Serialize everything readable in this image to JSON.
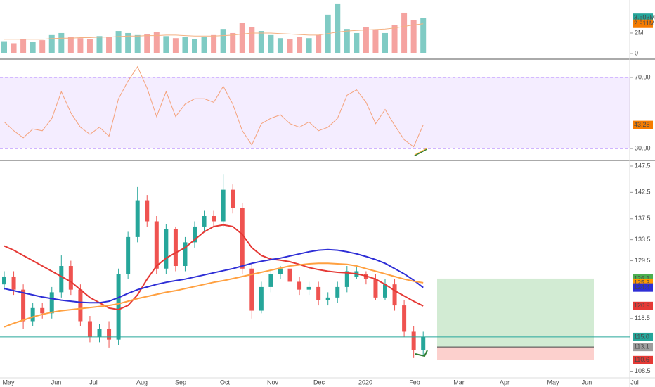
{
  "chart_data": [
    {
      "type": "bar",
      "values": [
        1200000,
        1000000,
        1400000,
        1100000,
        1300000,
        1800000,
        2000000,
        1600000,
        1500000,
        1400000,
        1700000,
        1600000,
        2200000,
        2000000,
        1800000,
        1900000,
        2100000,
        1700000,
        1500000,
        1600000,
        1400000,
        1600000,
        1800000,
        2400000,
        2000000,
        3000000,
        2600000,
        2200000,
        1800000,
        1500000,
        1400000,
        1600000,
        1500000,
        1800000,
        3800000,
        4900000,
        2400000,
        2000000,
        2600000,
        2300000,
        2000000,
        2800000,
        4000000,
        3300000,
        3503000
      ],
      "up_color": "#80cbc4",
      "down_color": "#f5a3a0",
      "ma": {
        "color": "#f4b183",
        "values": [
          1400000,
          1400000,
          1400000,
          1400000,
          1400000,
          1450000,
          1500000,
          1500000,
          1550000,
          1550000,
          1600000,
          1600000,
          1650000,
          1700000,
          1700000,
          1750000,
          1750000,
          1800000,
          1800000,
          1750000,
          1700000,
          1700000,
          1700000,
          1750000,
          1800000,
          1900000,
          2000000,
          2000000,
          2000000,
          1950000,
          1900000,
          1850000,
          1800000,
          1800000,
          1950000,
          2100000,
          2200000,
          2250000,
          2300000,
          2350000,
          2400000,
          2500000,
          2650000,
          2800000,
          2911000
        ]
      },
      "ylim": [
        -280000,
        5240000
      ],
      "yticks": [
        0,
        {
          "value": 2000000,
          "label": "2M"
        }
      ],
      "last_labels": [
        {
          "value": 3503000,
          "label": "3.503M",
          "color": "#26a69a"
        },
        {
          "value": 2911000,
          "label": "2.911M",
          "color": "#f57c00"
        }
      ]
    },
    {
      "type": "line",
      "values": [
        45,
        40,
        36,
        41,
        40,
        47,
        62,
        50,
        42,
        38,
        42,
        37,
        58,
        68,
        76,
        64,
        48,
        62,
        48,
        55,
        58,
        58,
        56,
        65,
        55,
        40,
        32,
        44,
        47,
        49,
        44,
        42,
        45,
        40,
        42,
        47,
        60,
        63,
        56,
        44,
        52,
        43,
        35,
        31,
        43.25
      ],
      "color": "#f4a27b",
      "band_color": "#b388ff",
      "ylim": [
        24.5,
        78.7
      ],
      "yticks": [
        {
          "value": 30,
          "label": "30.00"
        },
        {
          "value": 70,
          "label": "70.00"
        }
      ],
      "last_labels": [
        {
          "value": 43.25,
          "label": "43.25",
          "color": "#f57c00"
        }
      ]
    },
    {
      "type": "candlestick",
      "open": [
        125.0,
        126.5,
        124.0,
        118.0,
        120.5,
        119.5,
        123.5,
        128.5,
        124.0,
        118.0,
        115.0,
        116.5,
        114.5,
        127.0,
        134.0,
        141.0,
        137.0,
        128.0,
        135.5,
        128.5,
        133.0,
        136.0,
        138.0,
        137.0,
        143.0,
        139.5,
        128.0,
        120.0,
        124.5,
        127.0,
        128.0,
        125.5,
        124.0,
        124.5,
        122.0,
        122.5,
        124.5,
        126.5,
        127.0,
        126.0,
        122.5,
        125.0,
        121.0,
        116.0,
        112.5
      ],
      "high": [
        127.5,
        127.5,
        125.0,
        121.5,
        121.5,
        124.5,
        130.5,
        129.5,
        125.0,
        119.0,
        117.5,
        118.0,
        128.0,
        135.0,
        143.5,
        142.0,
        138.0,
        136.5,
        136.0,
        134.0,
        137.0,
        139.0,
        139.0,
        146.0,
        144.0,
        140.5,
        129.0,
        125.5,
        128.0,
        128.5,
        129.0,
        126.5,
        125.5,
        125.5,
        123.5,
        125.5,
        128.5,
        128.5,
        127.5,
        127.0,
        126.0,
        126.0,
        122.0,
        117.0,
        116.0
      ],
      "low": [
        124.0,
        123.0,
        116.5,
        117.0,
        118.5,
        118.5,
        122.5,
        123.0,
        117.0,
        114.0,
        114.0,
        113.0,
        113.5,
        126.0,
        133.0,
        136.0,
        127.0,
        127.0,
        127.5,
        127.5,
        132.0,
        135.0,
        136.0,
        136.0,
        138.5,
        127.0,
        118.5,
        119.5,
        123.5,
        126.0,
        125.0,
        123.0,
        123.0,
        121.0,
        121.0,
        121.5,
        123.5,
        126.0,
        125.0,
        122.0,
        122.0,
        120.0,
        115.0,
        111.0,
        111.5
      ],
      "close": [
        126.5,
        124.0,
        118.0,
        120.5,
        119.5,
        123.5,
        128.5,
        124.0,
        118.0,
        115.0,
        116.5,
        114.5,
        127.0,
        134.0,
        141.0,
        137.0,
        128.0,
        135.5,
        128.5,
        133.0,
        136.0,
        138.0,
        137.0,
        143.0,
        139.5,
        128.0,
        120.0,
        124.5,
        127.0,
        128.0,
        125.5,
        124.0,
        124.5,
        122.0,
        122.5,
        124.5,
        127.5,
        127.5,
        126.0,
        122.5,
        125.0,
        121.0,
        116.0,
        112.5,
        115.0
      ],
      "up_color": "#26a69a",
      "down_color": "#ef5350",
      "series": [
        {
          "color": "#e53935",
          "values": [
            132.3,
            131.5,
            130.5,
            129.5,
            128.5,
            127.5,
            126.5,
            125.5,
            124.0,
            122.5,
            121.5,
            120.5,
            120.2,
            121.0,
            123.0,
            126.0,
            128.5,
            130.0,
            131.0,
            132.0,
            133.5,
            135.0,
            136.0,
            136.3,
            136.0,
            134.5,
            132.0,
            130.5,
            129.8,
            129.6,
            129.3,
            128.8,
            128.2,
            127.8,
            127.5,
            127.3,
            127.2,
            127.0,
            126.6,
            126.0,
            125.0,
            123.8,
            122.8,
            121.8,
            120.9
          ]
        },
        {
          "color": "#2e2ed6",
          "values": [
            124.2,
            123.8,
            123.4,
            123.0,
            122.6,
            122.3,
            122.0,
            121.8,
            121.6,
            121.5,
            121.5,
            121.8,
            122.5,
            123.3,
            124.0,
            124.5,
            125.0,
            125.4,
            125.7,
            126.0,
            126.4,
            126.8,
            127.2,
            127.6,
            128.0,
            128.5,
            129.0,
            129.4,
            129.7,
            130.0,
            130.4,
            130.8,
            131.2,
            131.5,
            131.6,
            131.5,
            131.2,
            130.8,
            130.3,
            129.7,
            129.0,
            128.0,
            127.0,
            125.8,
            124.4
          ]
        },
        {
          "color": "#ffa040",
          "values": [
            116.9,
            117.6,
            118.2,
            118.8,
            119.3,
            119.7,
            120.0,
            120.2,
            120.4,
            120.6,
            120.8,
            121.0,
            121.3,
            121.8,
            122.3,
            122.7,
            123.1,
            123.5,
            123.8,
            124.2,
            124.6,
            125.0,
            125.4,
            125.7,
            126.1,
            126.5,
            126.9,
            127.3,
            127.7,
            128.1,
            128.5,
            128.7,
            128.9,
            129.0,
            129.0,
            128.9,
            128.8,
            128.5,
            128.0,
            127.5,
            127.0,
            126.5,
            126.0,
            125.6,
            125.3
          ]
        }
      ],
      "ylim": [
        107.5,
        148.3
      ],
      "yticks": [
        {
          "value": 108.5,
          "label": "108.5"
        },
        118.5,
        129.5,
        133.5,
        137.5,
        142.5,
        147.5
      ],
      "last_labels": [
        {
          "value": 126.1,
          "label": "126.1",
          "color": "#4caf50"
        },
        {
          "value": 125.3,
          "label": "125.3",
          "color": "#ff9800"
        },
        {
          "value": 124.4,
          "label": "124.4",
          "color": "#2e2ed6"
        },
        {
          "value": 120.9,
          "label": "120.9",
          "color": "#e53935"
        },
        {
          "value": 115,
          "label": "115.0",
          "color": "#26a69a",
          "line": true
        },
        {
          "value": 113.1,
          "label": "113.1",
          "color": "#9e9e9e"
        },
        {
          "value": 110.6,
          "label": "110.6",
          "color": "#e53935"
        }
      ],
      "position": {
        "target": 126.1,
        "entry": 113.1,
        "stop": 110.6
      },
      "x_labels": [
        "May",
        "Jun",
        "Jul",
        "Aug",
        "Sep",
        "Oct",
        "Nov",
        "Dec",
        "2020",
        "Feb",
        "Mar",
        "Apr",
        "May",
        "Jun",
        "Jul"
      ]
    }
  ]
}
